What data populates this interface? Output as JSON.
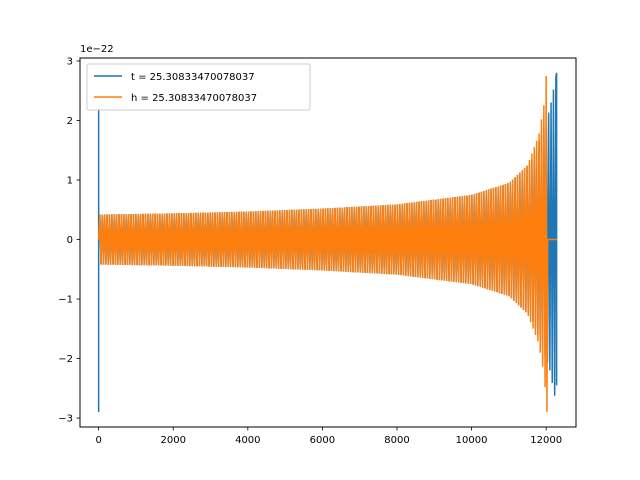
{
  "chart_data": {
    "type": "line",
    "offset_label": "1e−22",
    "xlim": [
      -500,
      12800
    ],
    "ylim": [
      -3.15,
      3.05
    ],
    "xticks": [
      0,
      2000,
      4000,
      6000,
      8000,
      10000,
      12000
    ],
    "xtick_labels": [
      "0",
      "2000",
      "4000",
      "6000",
      "8000",
      "10000",
      "12000"
    ],
    "yticks": [
      -3,
      -2,
      -1,
      0,
      1,
      2,
      3
    ],
    "ytick_labels": [
      "−3",
      "−2",
      "−1",
      "0",
      "1",
      "2",
      "3"
    ],
    "grid": false,
    "legend_position": "top-left",
    "series": [
      {
        "name": "t = 25.30833470078037",
        "color": "#1f77b4",
        "x_range": [
          0,
          12280
        ],
        "spike_at_start": {
          "x": 0,
          "min": -2.9,
          "max": 2.2
        },
        "envelope": [
          [
            0,
            0.42
          ],
          [
            2000,
            0.44
          ],
          [
            4000,
            0.47
          ],
          [
            6000,
            0.52
          ],
          [
            8000,
            0.59
          ],
          [
            10000,
            0.75
          ],
          [
            11000,
            0.95
          ],
          [
            11600,
            1.3
          ],
          [
            11900,
            1.8
          ],
          [
            12100,
            2.2
          ],
          [
            12280,
            2.8
          ]
        ],
        "end_min": -2.45
      },
      {
        "name": "h = 25.30833470078037",
        "color": "#ff7f0e",
        "x_range": [
          0,
          12300
        ],
        "merger_x": 12000,
        "envelope": [
          [
            0,
            0.42
          ],
          [
            2000,
            0.44
          ],
          [
            4000,
            0.47
          ],
          [
            6000,
            0.52
          ],
          [
            8000,
            0.59
          ],
          [
            10000,
            0.75
          ],
          [
            11000,
            0.95
          ],
          [
            11500,
            1.25
          ],
          [
            11800,
            1.75
          ],
          [
            11950,
            2.3
          ],
          [
            12000,
            2.75
          ]
        ],
        "end_min": -2.9,
        "flat_after_merger": 0
      }
    ]
  }
}
